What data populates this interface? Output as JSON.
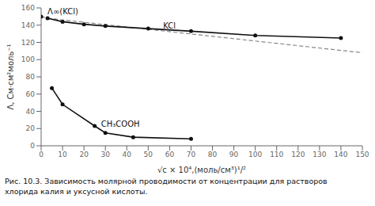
{
  "chart_data": {
    "type": "line",
    "caption": [
      "Рис. 10.3. Зависимость молярной проводимости от концентрации для растворов",
      "хлорида калия и уксусной кислоты."
    ],
    "x_label": "√c × 10⁴,(моль/см³)¹/²",
    "y_label": "Λ, См·см²моль⁻¹",
    "xlim": [
      0,
      150
    ],
    "ylim": [
      0,
      160
    ],
    "xticks": [
      0,
      10,
      20,
      30,
      40,
      50,
      60,
      70,
      80,
      90,
      100,
      110,
      120,
      130,
      140,
      150
    ],
    "yticks": [
      0,
      20,
      40,
      60,
      80,
      100,
      120,
      140,
      160
    ],
    "grid": false,
    "series": [
      {
        "x": [
          3,
          150
        ],
        "values": [
          148,
          108
        ],
        "color": "#888888",
        "line_style": "dashed",
        "marker": "none"
      },
      {
        "name": "KCl",
        "x": [
          3,
          10,
          20,
          30,
          50,
          70,
          100,
          140
        ],
        "values": [
          148,
          144,
          141,
          139,
          136,
          133,
          128,
          125
        ],
        "color": "#111111",
        "line_style": "solid",
        "marker": "o"
      },
      {
        "name": "CH₃COOH",
        "x": [
          5,
          10,
          25,
          30,
          43,
          70
        ],
        "values": [
          67,
          48,
          23,
          15,
          10,
          8
        ],
        "color": "#111111",
        "line_style": "solid",
        "marker": "o"
      },
      {
        "type": "scatter",
        "x": [
          0
        ],
        "values": [
          150
        ],
        "color": "#111111",
        "marker": "o"
      },
      {
        "x": [
          0,
          3
        ],
        "values": [
          150,
          148
        ],
        "color": "#888888",
        "line_style": "dashed",
        "marker": "none"
      }
    ],
    "annotations": [
      {
        "text": "Λ∞(KCl)",
        "x": 3,
        "y": 153
      },
      {
        "text": "KCl",
        "x": 57,
        "y": 136
      },
      {
        "text": "CH₃COOH",
        "x": 28,
        "y": 22
      }
    ]
  }
}
